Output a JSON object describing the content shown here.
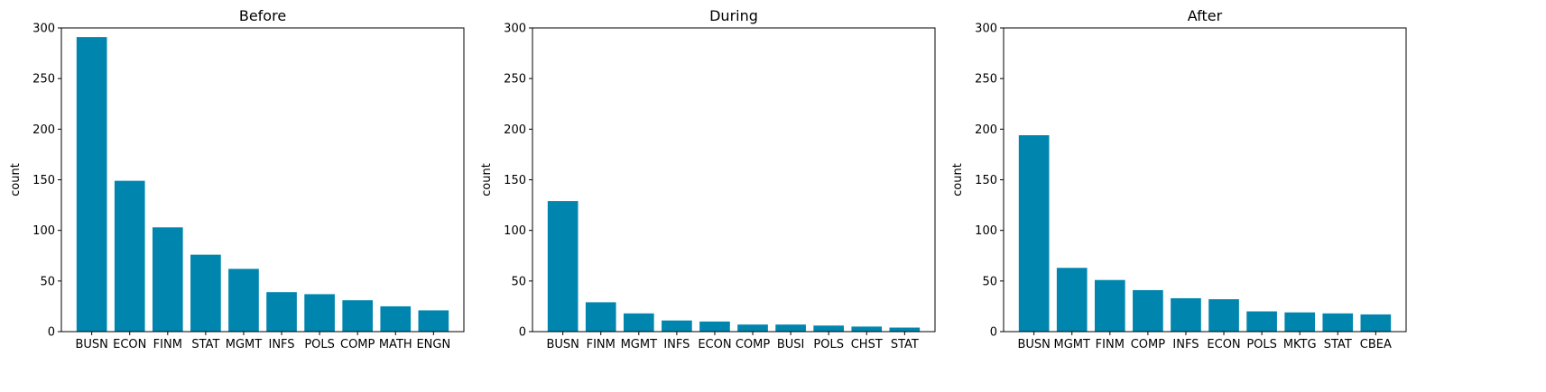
{
  "chart_data": [
    {
      "type": "bar",
      "title": "Before",
      "xlabel": "",
      "ylabel": "count",
      "ylim": [
        0,
        300
      ],
      "yticks": [
        0,
        50,
        100,
        150,
        200,
        250,
        300
      ],
      "categories": [
        "BUSN",
        "ECON",
        "FINM",
        "STAT",
        "MGMT",
        "INFS",
        "POLS",
        "COMP",
        "MATH",
        "ENGN"
      ],
      "values": [
        291,
        149,
        103,
        76,
        62,
        39,
        37,
        31,
        25,
        21
      ],
      "color": "#0086AE",
      "grid": false,
      "legend": "none"
    },
    {
      "type": "bar",
      "title": "During",
      "xlabel": "",
      "ylabel": "count",
      "ylim": [
        0,
        300
      ],
      "yticks": [
        0,
        50,
        100,
        150,
        200,
        250,
        300
      ],
      "categories": [
        "BUSN",
        "FINM",
        "MGMT",
        "INFS",
        "ECON",
        "COMP",
        "BUSI",
        "POLS",
        "CHST",
        "STAT"
      ],
      "values": [
        129,
        29,
        18,
        11,
        10,
        7,
        7,
        6,
        5,
        4
      ],
      "color": "#0086AE",
      "grid": false,
      "legend": "none"
    },
    {
      "type": "bar",
      "title": "After",
      "xlabel": "",
      "ylabel": "count",
      "ylim": [
        0,
        300
      ],
      "yticks": [
        0,
        50,
        100,
        150,
        200,
        250,
        300
      ],
      "categories": [
        "BUSN",
        "MGMT",
        "FINM",
        "COMP",
        "INFS",
        "ECON",
        "POLS",
        "MKTG",
        "STAT",
        "CBEA"
      ],
      "values": [
        194,
        63,
        51,
        41,
        33,
        32,
        20,
        19,
        18,
        17
      ],
      "color": "#0086AE",
      "grid": false,
      "legend": "none"
    }
  ]
}
